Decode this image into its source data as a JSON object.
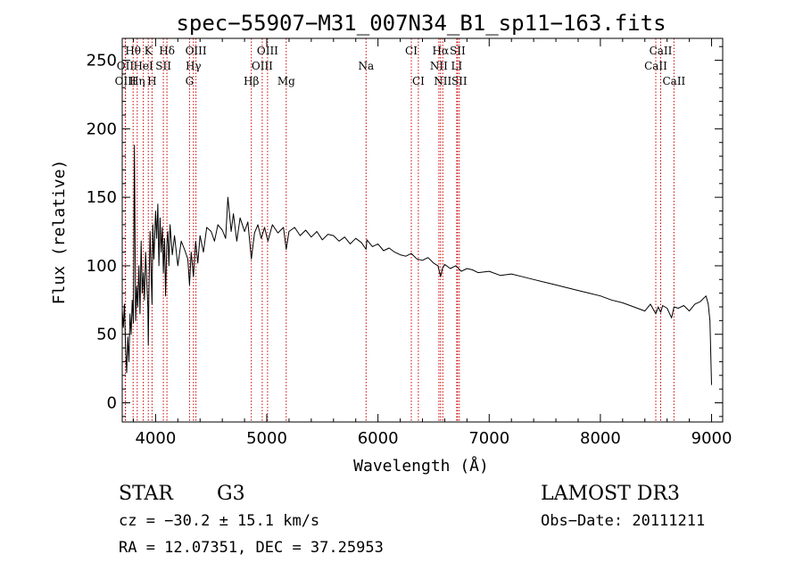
{
  "chart_data": {
    "type": "line",
    "title": "spec−55907−M31_007N34_B1_sp11−163.fits",
    "xlabel": "Wavelength (Å)",
    "ylabel": "Flux (relative)",
    "xlim": [
      3700,
      9100
    ],
    "ylim": [
      -14,
      266
    ],
    "xticks": [
      4000,
      5000,
      6000,
      7000,
      8000,
      9000
    ],
    "yticks": [
      0,
      50,
      100,
      150,
      200,
      250
    ],
    "grid": false,
    "series": [
      {
        "name": "spectrum",
        "x": [
          3700,
          3710,
          3720,
          3730,
          3740,
          3750,
          3760,
          3770,
          3780,
          3790,
          3800,
          3810,
          3820,
          3830,
          3840,
          3850,
          3860,
          3870,
          3880,
          3890,
          3900,
          3910,
          3920,
          3930,
          3934,
          3940,
          3950,
          3960,
          3968,
          3975,
          3985,
          4000,
          4010,
          4020,
          4030,
          4040,
          4050,
          4060,
          4070,
          4080,
          4090,
          4100,
          4110,
          4120,
          4130,
          4150,
          4170,
          4200,
          4230,
          4260,
          4290,
          4305,
          4320,
          4340,
          4360,
          4380,
          4400,
          4430,
          4460,
          4500,
          4530,
          4560,
          4600,
          4630,
          4650,
          4680,
          4700,
          4730,
          4760,
          4800,
          4830,
          4861,
          4890,
          4920,
          4950,
          4980,
          5010,
          5050,
          5100,
          5150,
          5175,
          5200,
          5250,
          5300,
          5350,
          5400,
          5450,
          5500,
          5550,
          5600,
          5650,
          5700,
          5750,
          5800,
          5850,
          5893,
          5900,
          5950,
          6000,
          6050,
          6100,
          6150,
          6200,
          6250,
          6300,
          6350,
          6400,
          6450,
          6500,
          6540,
          6563,
          6580,
          6600,
          6650,
          6700,
          6750,
          6800,
          6850,
          6900,
          7000,
          7100,
          7200,
          7300,
          7400,
          7500,
          7600,
          7700,
          7800,
          7900,
          8000,
          8100,
          8200,
          8300,
          8400,
          8450,
          8498,
          8520,
          8542,
          8560,
          8600,
          8640,
          8662,
          8700,
          8750,
          8800,
          8850,
          8900,
          8950,
          8970,
          8985,
          9000
        ],
        "y": [
          68,
          55,
          72,
          40,
          22,
          48,
          30,
          65,
          50,
          75,
          58,
          188,
          60,
          85,
          70,
          100,
          65,
          118,
          80,
          95,
          75,
          110,
          90,
          70,
          42,
          80,
          125,
          95,
          72,
          130,
          105,
          140,
          120,
          145,
          100,
          135,
          110,
          128,
          95,
          120,
          78,
          115,
          125,
          100,
          130,
          108,
          122,
          100,
          118,
          112,
          105,
          86,
          110,
          92,
          118,
          102,
          122,
          110,
          128,
          125,
          118,
          130,
          126,
          120,
          150,
          125,
          138,
          118,
          135,
          125,
          132,
          105,
          124,
          130,
          120,
          128,
          118,
          130,
          124,
          128,
          112,
          125,
          128,
          122,
          126,
          121,
          125,
          119,
          123,
          122,
          118,
          121,
          116,
          120,
          117,
          112,
          119,
          114,
          116,
          111,
          113,
          110,
          108,
          107,
          109,
          105,
          104,
          106,
          102,
          100,
          92,
          98,
          101,
          98,
          100,
          96,
          98,
          97,
          95,
          96,
          93,
          94,
          92,
          90,
          88,
          86,
          84,
          82,
          80,
          78,
          75,
          73,
          70,
          67,
          72,
          65,
          70,
          66,
          71,
          69,
          62,
          70,
          69,
          71,
          67,
          72,
          74,
          78,
          72,
          60,
          13
        ]
      }
    ],
    "annotations": [
      {
        "label": "Hθ",
        "wave": 3798,
        "row": 1
      },
      {
        "label": "OII",
        "wave": 3727,
        "row": 2
      },
      {
        "label": "HeI",
        "wave": 3889,
        "row": 2
      },
      {
        "label": "OIII",
        "wave": 3730,
        "row": 3
      },
      {
        "label": "Hη",
        "wave": 3835,
        "row": 3
      },
      {
        "label": "K",
        "wave": 3934,
        "row": 1
      },
      {
        "label": "SII",
        "wave": 4070,
        "row": 2
      },
      {
        "label": "H",
        "wave": 3968,
        "row": 3
      },
      {
        "label": "Hδ",
        "wave": 4102,
        "row": 1
      },
      {
        "label": "OIII",
        "wave": 4363,
        "row": 1
      },
      {
        "label": "Hγ",
        "wave": 4340,
        "row": 2
      },
      {
        "label": "G",
        "wave": 4305,
        "row": 3
      },
      {
        "label": "OIII",
        "wave": 5007,
        "row": 1
      },
      {
        "label": "OIII",
        "wave": 4959,
        "row": 2
      },
      {
        "label": "Hβ",
        "wave": 4861,
        "row": 3
      },
      {
        "label": "Mg",
        "wave": 5175,
        "row": 3
      },
      {
        "label": "Na",
        "wave": 5893,
        "row": 2
      },
      {
        "label": "CI",
        "wave": 6300,
        "row": 1
      },
      {
        "label": "CI",
        "wave": 6363,
        "row": 3
      },
      {
        "label": "Hα",
        "wave": 6563,
        "row": 1
      },
      {
        "label": "NII",
        "wave": 6548,
        "row": 2
      },
      {
        "label": "NII",
        "wave": 6583,
        "row": 3
      },
      {
        "label": "SII",
        "wave": 6716,
        "row": 1
      },
      {
        "label": "LI",
        "wave": 6708,
        "row": 2
      },
      {
        "label": "SII",
        "wave": 6731,
        "row": 3
      },
      {
        "label": "CaII",
        "wave": 8542,
        "row": 1
      },
      {
        "label": "CaII",
        "wave": 8498,
        "row": 2
      },
      {
        "label": "CaII",
        "wave": 8662,
        "row": 3
      }
    ]
  },
  "info": {
    "object_class": "STAR",
    "subclass": "G3",
    "survey": "LAMOST DR3",
    "cz": "cz = −30.2 ± 15.1 km/s",
    "obs_date": "Obs−Date: 20111211",
    "radec": "RA =  12.07351, DEC =  37.25953"
  },
  "colors": {
    "spectrum": "#000000",
    "line_marker": "#cc0000"
  }
}
